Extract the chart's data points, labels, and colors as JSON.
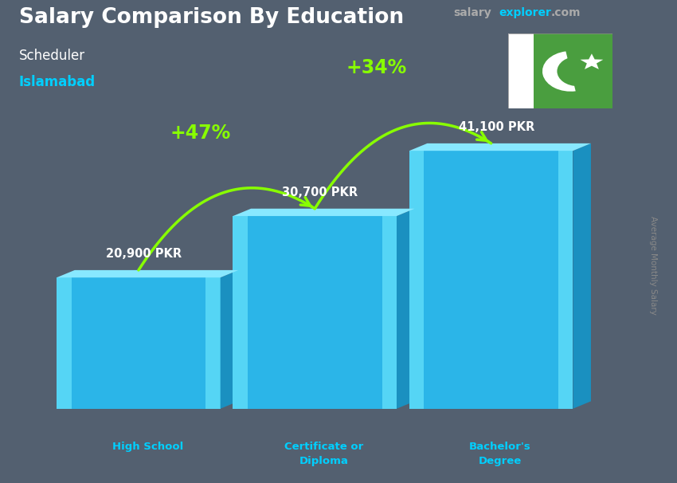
{
  "title_main": "Salary Comparison By Education",
  "subtitle1": "Scheduler",
  "subtitle2": "Islamabad",
  "categories": [
    "High School",
    "Certificate or\nDiploma",
    "Bachelor's\nDegree"
  ],
  "values": [
    20900,
    30700,
    41100
  ],
  "labels": [
    "20,900 PKR",
    "30,700 PKR",
    "41,100 PKR"
  ],
  "pct_arrows": [
    "+47%",
    "+34%"
  ],
  "bar_color_left": "#5dd8f5",
  "bar_color_center": "#29aadf",
  "bar_color_right": "#5dd8f5",
  "bar_color_top": "#7de8ff",
  "bar_width": 0.13,
  "bg_color": "#536070",
  "title_color": "#ffffff",
  "subtitle1_color": "#ffffff",
  "subtitle2_color": "#00cfff",
  "label_color": "#ffffff",
  "category_color": "#00cfff",
  "arrow_color": "#88ff00",
  "pct_color": "#88ff00",
  "site_salary_color": "#888888",
  "site_explorer_color": "#00cfff",
  "site_com_color": "#888888",
  "ylabel_text": "Average Monthly Salary",
  "ylim_max": 50000,
  "flag_green": "#4a9e3f",
  "x_positions": [
    0.22,
    0.5,
    0.78
  ],
  "fig_width": 8.5,
  "fig_height": 6.06
}
